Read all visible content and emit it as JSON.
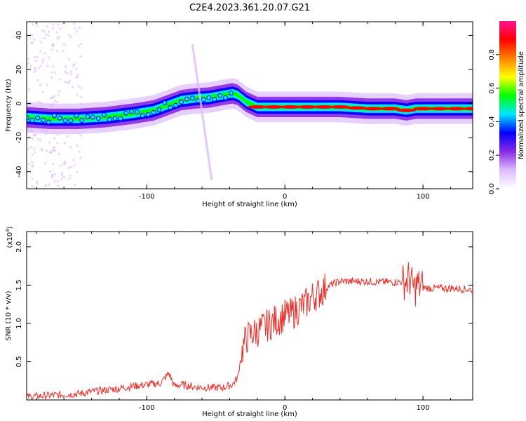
{
  "title": "C2E4.2023.361.20.07.G21",
  "colors": {
    "snr_line": "#e8302a",
    "axis": "#000000",
    "colormap": [
      "#ffffff",
      "#ddbbff",
      "#8a2be2",
      "#0000ff",
      "#00e5ff",
      "#00ff00",
      "#ffff00",
      "#ff8000",
      "#ff0000",
      "#ff1493"
    ]
  },
  "chart_data": [
    {
      "type": "heatmap",
      "xlabel": "Height of straight line (km)",
      "ylabel": "Frequency (Hz)",
      "xlim": [
        -187,
        136
      ],
      "ylim": [
        -50,
        48
      ],
      "x_ticks": [
        -100,
        0,
        100
      ],
      "y_ticks": [
        -40,
        -20,
        0,
        20,
        40
      ],
      "colorbar": {
        "label": "Normalized spectral amplitude",
        "range": [
          0,
          1
        ],
        "ticks": [
          "0.0",
          "0.2",
          "0.4",
          "0.6",
          "0.8"
        ],
        "tick_values": [
          0.0,
          0.2,
          0.4,
          0.6,
          0.8
        ]
      },
      "ridge": {
        "x": [
          -187,
          -170,
          -150,
          -130,
          -110,
          -95,
          -85,
          -75,
          -65,
          -55,
          -45,
          -38,
          -34,
          -28,
          -20,
          0,
          20,
          40,
          60,
          80,
          88,
          95,
          110,
          136
        ],
        "y": [
          -8,
          -9,
          -9,
          -8,
          -6,
          -4,
          -1,
          2,
          3,
          3.5,
          5,
          6,
          5,
          1,
          -2,
          -2,
          -2,
          -2,
          -3,
          -3,
          -4,
          -3,
          -3,
          -3
        ]
      }
    },
    {
      "type": "line",
      "xlabel": "Height of straight line (km)",
      "ylabel": "SNR (10 * v/v)",
      "y_multiplier": "(x10",
      "y_multiplier_exp": "4",
      "y_multiplier_close": ")",
      "xlim": [
        -187,
        136
      ],
      "ylim": [
        0,
        2.2
      ],
      "x_ticks": [
        -100,
        0,
        100
      ],
      "y_ticks": [
        0.5,
        1.0,
        1.5,
        2.0
      ],
      "y_tick_labels": [
        "0.5",
        "1.0",
        "1.5",
        "2.0"
      ],
      "series": [
        {
          "x": [
            -187,
            -170,
            -150,
            -135,
            -120,
            -110,
            -100,
            -90,
            -84,
            -80,
            -75,
            -65,
            -55,
            -45,
            -38,
            -34,
            -32,
            -30,
            -28,
            -25,
            -20,
            -15,
            -10,
            -5,
            0,
            5,
            10,
            15,
            20,
            25,
            30,
            35,
            40,
            50,
            60,
            70,
            80,
            88,
            90,
            92,
            94,
            96,
            98,
            100,
            105,
            110,
            120,
            136
          ],
          "y": [
            0.04,
            0.06,
            0.08,
            0.12,
            0.15,
            0.18,
            0.2,
            0.22,
            0.35,
            0.18,
            0.2,
            0.17,
            0.16,
            0.16,
            0.2,
            0.3,
            0.55,
            0.7,
            0.8,
            0.85,
            0.9,
            0.95,
            1.0,
            1.05,
            1.1,
            1.12,
            1.2,
            1.25,
            1.35,
            1.4,
            1.47,
            1.52,
            1.55,
            1.55,
            1.55,
            1.54,
            1.54,
            1.55,
            1.6,
            1.5,
            1.45,
            1.5,
            1.48,
            1.47,
            1.46,
            1.46,
            1.46,
            1.44
          ]
        }
      ]
    }
  ]
}
